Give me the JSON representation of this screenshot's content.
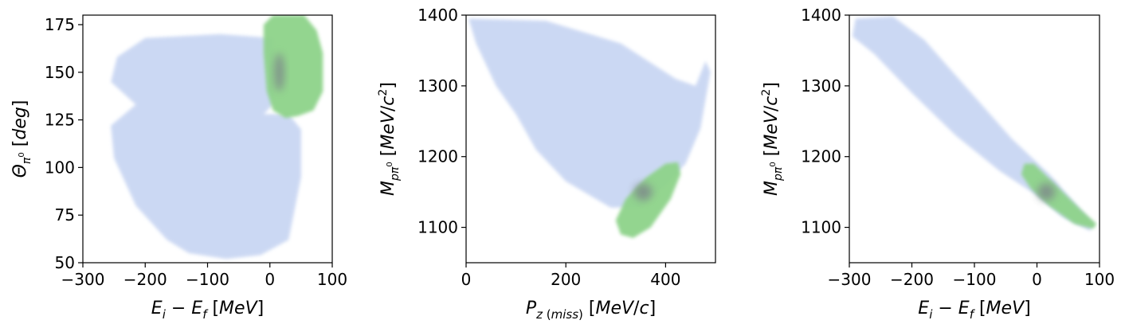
{
  "colors": {
    "background_density": "#c6d4f2",
    "signal_density": "#8ed38a",
    "signal_core": "#7f8f8a",
    "axis": "#000000"
  },
  "chart_data": [
    {
      "type": "heatmap",
      "xlabel": "E_i − E_f [MeV]",
      "ylabel": "Θ_π0 [deg]",
      "xlim": [
        -300,
        100
      ],
      "ylim": [
        50,
        180
      ],
      "xticks": [
        -300,
        -200,
        -100,
        0,
        100
      ],
      "yticks": [
        50,
        75,
        100,
        125,
        150,
        175
      ],
      "xtick_labels": [
        "−300",
        "−200",
        "−100",
        "0",
        "100"
      ],
      "ytick_labels": [
        "50",
        "75",
        "100",
        "125",
        "150",
        "175"
      ],
      "grid": false,
      "regions": [
        {
          "component": "background",
          "polygon": [
            [
              -245,
              158
            ],
            [
              -200,
              168
            ],
            [
              -80,
              170
            ],
            [
              5,
              168
            ],
            [
              5,
              133
            ],
            [
              -10,
              128
            ],
            [
              30,
              128
            ],
            [
              50,
              120
            ],
            [
              50,
              95
            ],
            [
              30,
              62
            ],
            [
              -15,
              54
            ],
            [
              -70,
              52
            ],
            [
              -130,
              55
            ],
            [
              -165,
              62
            ],
            [
              -215,
              80
            ],
            [
              -250,
              105
            ],
            [
              -255,
              122
            ],
            [
              -215,
              133
            ],
            [
              -255,
              145
            ]
          ]
        },
        {
          "component": "signal",
          "polygon": [
            [
              -10,
              175
            ],
            [
              5,
              180
            ],
            [
              55,
              180
            ],
            [
              75,
              172
            ],
            [
              85,
              160
            ],
            [
              85,
              140
            ],
            [
              70,
              130
            ],
            [
              45,
              127
            ],
            [
              25,
              126
            ],
            [
              5,
              130
            ],
            [
              -5,
              140
            ],
            [
              -10,
              160
            ]
          ]
        },
        {
          "component": "signal-core",
          "center": [
            15,
            150
          ],
          "sx": 8,
          "sy": 10
        }
      ]
    },
    {
      "type": "heatmap",
      "xlabel": "P_z(miss) [MeV/c]",
      "ylabel": "M_pπ0 [MeV/c²]",
      "xlim": [
        0,
        500
      ],
      "ylim": [
        1050,
        1400
      ],
      "xticks": [
        0,
        200,
        400
      ],
      "yticks": [
        1100,
        1200,
        1300,
        1400
      ],
      "xtick_labels": [
        "0",
        "200",
        "400"
      ],
      "ytick_labels": [
        "1100",
        "1200",
        "1300",
        "1400"
      ],
      "grid": false,
      "regions": [
        {
          "component": "background",
          "polygon": [
            [
              5,
              1395
            ],
            [
              160,
              1392
            ],
            [
              310,
              1360
            ],
            [
              420,
              1310
            ],
            [
              460,
              1300
            ],
            [
              480,
              1335
            ],
            [
              490,
              1320
            ],
            [
              470,
              1240
            ],
            [
              440,
              1190
            ],
            [
              400,
              1160
            ],
            [
              350,
              1128
            ],
            [
              290,
              1128
            ],
            [
              200,
              1165
            ],
            [
              140,
              1210
            ],
            [
              100,
              1260
            ],
            [
              60,
              1300
            ],
            [
              20,
              1360
            ]
          ]
        },
        {
          "component": "signal",
          "polygon": [
            [
              300,
              1110
            ],
            [
              310,
              1090
            ],
            [
              335,
              1085
            ],
            [
              370,
              1100
            ],
            [
              410,
              1140
            ],
            [
              430,
              1175
            ],
            [
              425,
              1192
            ],
            [
              400,
              1190
            ],
            [
              360,
              1170
            ],
            [
              320,
              1140
            ]
          ]
        },
        {
          "component": "signal-core",
          "center": [
            355,
            1150
          ],
          "sx": 18,
          "sy": 12
        }
      ]
    },
    {
      "type": "heatmap",
      "xlabel": "E_i − E_f [MeV]",
      "ylabel": "M_pπ0 [MeV/c²]",
      "xlim": [
        -300,
        100
      ],
      "ylim": [
        1050,
        1400
      ],
      "xticks": [
        -300,
        -200,
        -100,
        0,
        100
      ],
      "yticks": [
        1100,
        1200,
        1300,
        1400
      ],
      "xtick_labels": [
        "−300",
        "−200",
        "−100",
        "0",
        "100"
      ],
      "ytick_labels": [
        "1100",
        "1200",
        "1300",
        "1400"
      ],
      "grid": false,
      "regions": [
        {
          "component": "background",
          "polygon": [
            [
              -290,
              1395
            ],
            [
              -230,
              1398
            ],
            [
              -180,
              1365
            ],
            [
              -100,
              1285
            ],
            [
              -40,
              1225
            ],
            [
              20,
              1175
            ],
            [
              60,
              1135
            ],
            [
              90,
              1105
            ],
            [
              85,
              1095
            ],
            [
              40,
              1115
            ],
            [
              0,
              1145
            ],
            [
              -60,
              1180
            ],
            [
              -130,
              1230
            ],
            [
              -200,
              1290
            ],
            [
              -260,
              1345
            ],
            [
              -295,
              1370
            ]
          ]
        },
        {
          "component": "signal",
          "polygon": [
            [
              -20,
              1190
            ],
            [
              -5,
              1190
            ],
            [
              30,
              1160
            ],
            [
              70,
              1125
            ],
            [
              95,
              1105
            ],
            [
              90,
              1098
            ],
            [
              60,
              1105
            ],
            [
              20,
              1130
            ],
            [
              -10,
              1155
            ],
            [
              -25,
              1175
            ]
          ]
        },
        {
          "component": "signal-core",
          "center": [
            15,
            1150
          ],
          "sx": 14,
          "sy": 12
        }
      ]
    }
  ]
}
